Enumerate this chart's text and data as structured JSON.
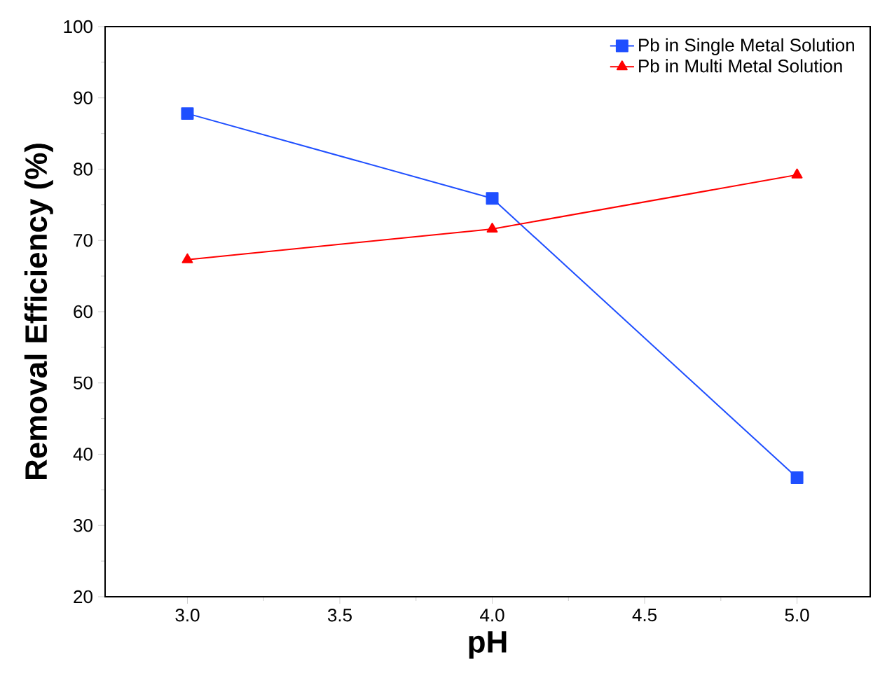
{
  "chart_data": {
    "type": "line",
    "xlabel": "pH",
    "ylabel": "Removal Efficiency (%)",
    "x": [
      3.0,
      4.0,
      5.0
    ],
    "series": [
      {
        "name": "Pb in Single Metal Solution",
        "color": "#1f4fff",
        "values": [
          87.8,
          75.9,
          36.7
        ],
        "marker": "square"
      },
      {
        "name": "Pb in Multi Metal Solution",
        "color": "#ff0000",
        "values": [
          67.3,
          71.6,
          79.2
        ],
        "marker": "triangle"
      }
    ],
    "xlim": [
      2.73,
      5.24
    ],
    "ylim": [
      20,
      100
    ],
    "xticks": [
      {
        "value": 3.0,
        "label": "3.0"
      },
      {
        "value": 3.5,
        "label": "3.5"
      },
      {
        "value": 4.0,
        "label": "4.0"
      },
      {
        "value": 4.5,
        "label": "4.5"
      },
      {
        "value": 5.0,
        "label": "5.0"
      }
    ],
    "yticks": [
      20,
      30,
      40,
      50,
      60,
      70,
      80,
      90,
      100
    ],
    "grid": false,
    "legend": "top right",
    "line_style": "solid"
  }
}
